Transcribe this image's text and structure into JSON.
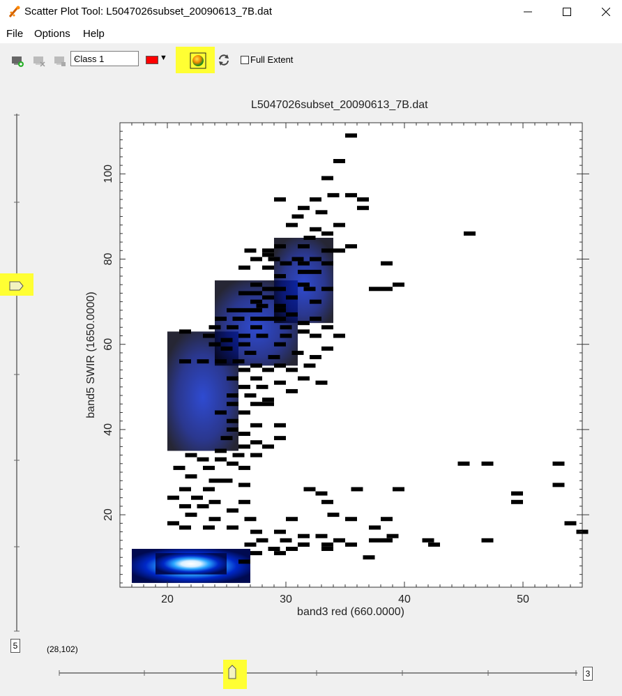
{
  "window": {
    "title": "Scatter Plot Tool: L5047026subset_20090613_7B.dat"
  },
  "menu": {
    "items": [
      "File",
      "Options",
      "Help"
    ]
  },
  "toolbar": {
    "class_value": "Class 1",
    "class_color": "#ff0000",
    "full_extent_label": "Full Extent",
    "full_extent_checked": false,
    "highlight_color": "#ffff33"
  },
  "chart_data": {
    "type": "heatmap",
    "title": "L5047026subset_20090613_7B.dat",
    "xlabel": "band3 red (660.0000)",
    "ylabel": "band5 SWIR (1650.0000)",
    "xlim": [
      16,
      55
    ],
    "ylim": [
      3,
      112
    ],
    "x_ticks": [
      20,
      30,
      40,
      50
    ],
    "y_ticks": [
      20,
      40,
      60,
      80,
      100
    ],
    "density_bins": [
      {
        "x0": 17,
        "x1": 27,
        "y0": 4,
        "y1": 12,
        "v": 0.9
      },
      {
        "x0": 19,
        "x1": 25,
        "y0": 6,
        "y1": 11,
        "v": 1.0
      },
      {
        "x0": 20,
        "x1": 26,
        "y0": 35,
        "y1": 63,
        "v": 0.6
      },
      {
        "x0": 24,
        "x1": 31,
        "y0": 55,
        "y1": 75,
        "v": 0.4
      },
      {
        "x0": 29,
        "x1": 34,
        "y0": 65,
        "y1": 85,
        "v": 0.2
      }
    ],
    "scatter_cells": [
      [
        35.5,
        109
      ],
      [
        34.5,
        103
      ],
      [
        33.5,
        99
      ],
      [
        34,
        95
      ],
      [
        35.5,
        95
      ],
      [
        36.5,
        94
      ],
      [
        36.5,
        92
      ],
      [
        29.5,
        94
      ],
      [
        32.5,
        94
      ],
      [
        31.5,
        92
      ],
      [
        33,
        91
      ],
      [
        31,
        90
      ],
      [
        30.5,
        88
      ],
      [
        32.5,
        87
      ],
      [
        34.5,
        88
      ],
      [
        33.5,
        86
      ],
      [
        32,
        85
      ],
      [
        31.5,
        83
      ],
      [
        29.5,
        83
      ],
      [
        28.5,
        82
      ],
      [
        27,
        82
      ],
      [
        28.5,
        81
      ],
      [
        27.5,
        80
      ],
      [
        29,
        80
      ],
      [
        31,
        80
      ],
      [
        30,
        79
      ],
      [
        28.5,
        78
      ],
      [
        26.5,
        78
      ],
      [
        33.5,
        79
      ],
      [
        32.5,
        77
      ],
      [
        31.5,
        77
      ],
      [
        29.5,
        76
      ],
      [
        31.5,
        74
      ],
      [
        27.5,
        74
      ],
      [
        28.5,
        73
      ],
      [
        29.5,
        73
      ],
      [
        32,
        73
      ],
      [
        33.5,
        73
      ],
      [
        26.5,
        72
      ],
      [
        27.5,
        72
      ],
      [
        28.5,
        71
      ],
      [
        30.5,
        71
      ],
      [
        32.5,
        70
      ],
      [
        27.5,
        70
      ],
      [
        28,
        69
      ],
      [
        29.5,
        69
      ],
      [
        25.5,
        68
      ],
      [
        26.5,
        68
      ],
      [
        27.5,
        68
      ],
      [
        29.5,
        68
      ],
      [
        30.5,
        67
      ],
      [
        32.5,
        66
      ],
      [
        24.5,
        66
      ],
      [
        26,
        66
      ],
      [
        27.5,
        66
      ],
      [
        28.5,
        66
      ],
      [
        29.5,
        66
      ],
      [
        31.5,
        65
      ],
      [
        33.5,
        64
      ],
      [
        24,
        64
      ],
      [
        25.5,
        64
      ],
      [
        27.5,
        64
      ],
      [
        30,
        64
      ],
      [
        31.5,
        63
      ],
      [
        32.5,
        62
      ],
      [
        34.5,
        62
      ],
      [
        21.5,
        63
      ],
      [
        23.5,
        62
      ],
      [
        26.5,
        62
      ],
      [
        28,
        62
      ],
      [
        30,
        62
      ],
      [
        25,
        61
      ],
      [
        26.5,
        60
      ],
      [
        29.5,
        60
      ],
      [
        33.5,
        59
      ],
      [
        24,
        60
      ],
      [
        25,
        59
      ],
      [
        27,
        58
      ],
      [
        29,
        57
      ],
      [
        31,
        58
      ],
      [
        32.5,
        57
      ],
      [
        21.5,
        56
      ],
      [
        23,
        56
      ],
      [
        24.5,
        56
      ],
      [
        26,
        56
      ],
      [
        27.5,
        55
      ],
      [
        29.5,
        55
      ],
      [
        32,
        55
      ],
      [
        26.5,
        54
      ],
      [
        28.5,
        54
      ],
      [
        30.5,
        54
      ],
      [
        25.5,
        52
      ],
      [
        27.5,
        52
      ],
      [
        29.5,
        51
      ],
      [
        31.5,
        52
      ],
      [
        33,
        51
      ],
      [
        26.5,
        50
      ],
      [
        28,
        50
      ],
      [
        30.5,
        49
      ],
      [
        25.5,
        48
      ],
      [
        27,
        48
      ],
      [
        25.5,
        46
      ],
      [
        28.5,
        46
      ],
      [
        24.5,
        44
      ],
      [
        26.5,
        44
      ],
      [
        25.5,
        42
      ],
      [
        27.5,
        41
      ],
      [
        29.5,
        41
      ],
      [
        25.5,
        40
      ],
      [
        26.5,
        39
      ],
      [
        25,
        38
      ],
      [
        27.5,
        37
      ],
      [
        26.5,
        36
      ],
      [
        24.5,
        35
      ],
      [
        26,
        34
      ],
      [
        22,
        34
      ],
      [
        23,
        33
      ],
      [
        24.5,
        33
      ],
      [
        25.5,
        32
      ],
      [
        21,
        31
      ],
      [
        23.5,
        31
      ],
      [
        22,
        29
      ],
      [
        24,
        28
      ],
      [
        25,
        28
      ],
      [
        26.5,
        27
      ],
      [
        21.5,
        26
      ],
      [
        23.5,
        26
      ],
      [
        20.5,
        24
      ],
      [
        22.5,
        24
      ],
      [
        24,
        23
      ],
      [
        26.5,
        23
      ],
      [
        21.5,
        22
      ],
      [
        23,
        22
      ],
      [
        25.5,
        21
      ],
      [
        27,
        19
      ],
      [
        22,
        20
      ],
      [
        24,
        19
      ],
      [
        20.5,
        18
      ],
      [
        21.5,
        17
      ],
      [
        23.5,
        17
      ],
      [
        25.5,
        17
      ],
      [
        27.5,
        16
      ],
      [
        29.5,
        16
      ],
      [
        31.5,
        15
      ],
      [
        33,
        15
      ],
      [
        28,
        14
      ],
      [
        30,
        14
      ],
      [
        31.5,
        13
      ],
      [
        33.5,
        13
      ],
      [
        27,
        13
      ],
      [
        29,
        12
      ],
      [
        30.5,
        12
      ],
      [
        27.5,
        11
      ],
      [
        29.5,
        11
      ],
      [
        26.5,
        9
      ],
      [
        31.5,
        13
      ],
      [
        34.5,
        14
      ],
      [
        35.5,
        13
      ],
      [
        33.5,
        12
      ],
      [
        37,
        10
      ],
      [
        38.5,
        19
      ],
      [
        30.5,
        19
      ],
      [
        33.5,
        23
      ],
      [
        33,
        25
      ],
      [
        32,
        26
      ],
      [
        34,
        20
      ],
      [
        35.5,
        19
      ],
      [
        37.5,
        17
      ],
      [
        38.5,
        14
      ],
      [
        39,
        15
      ],
      [
        36,
        26
      ],
      [
        39.5,
        26
      ],
      [
        37.5,
        14
      ],
      [
        42.5,
        13
      ],
      [
        45,
        32
      ],
      [
        47,
        32
      ],
      [
        53,
        32
      ],
      [
        53,
        27
      ],
      [
        49.5,
        25
      ],
      [
        49.5,
        23
      ],
      [
        55,
        16
      ],
      [
        54,
        18
      ],
      [
        47,
        14
      ],
      [
        42,
        14
      ],
      [
        45.5,
        86
      ],
      [
        38.5,
        79
      ],
      [
        39.5,
        74
      ],
      [
        38.5,
        73
      ],
      [
        37.5,
        73
      ],
      [
        35.5,
        83
      ],
      [
        34.5,
        82
      ],
      [
        33.5,
        82
      ],
      [
        32.5,
        80
      ],
      [
        31.5,
        79
      ],
      [
        28.5,
        47
      ],
      [
        27.5,
        46
      ],
      [
        29.5,
        38
      ],
      [
        28.5,
        36
      ],
      [
        27.5,
        34
      ],
      [
        26.5,
        31
      ]
    ],
    "grid": false,
    "legend": "none"
  },
  "coord_readout": "(28,102)",
  "left_slider": {
    "value_label": "5",
    "position": 0.33
  },
  "bottom_slider": {
    "value_label": "3",
    "position": 0.33
  },
  "icons": [
    "app-icon",
    "add-class-icon",
    "delete-class-icon",
    "clear-class-icon",
    "density-slice-icon",
    "refresh-icon"
  ]
}
